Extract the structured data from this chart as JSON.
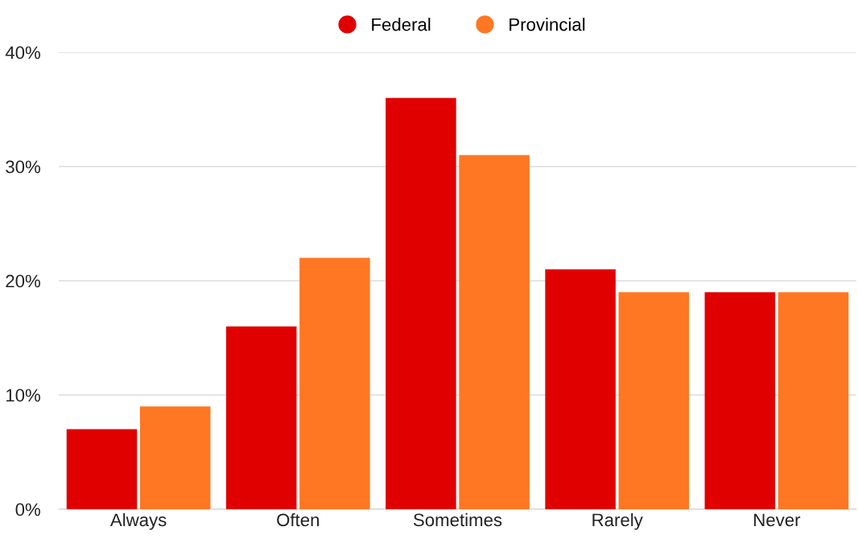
{
  "chart_data": {
    "type": "bar",
    "categories": [
      "Always",
      "Often",
      "Sometimes",
      "Rarely",
      "Never"
    ],
    "series": [
      {
        "name": "Federal",
        "color": "#e00000",
        "values": [
          7,
          16,
          36,
          21,
          19
        ]
      },
      {
        "name": "Provincial",
        "color": "#ff7722",
        "values": [
          9,
          22,
          31,
          19,
          19
        ]
      }
    ],
    "ylim": [
      0,
      40
    ],
    "yticks": [
      {
        "value": 0,
        "label": "0%"
      },
      {
        "value": 10,
        "label": "10%"
      },
      {
        "value": 20,
        "label": "20%"
      },
      {
        "value": 30,
        "label": "30%"
      },
      {
        "value": 40,
        "label": "40%"
      }
    ],
    "grid": "y",
    "legend": "top"
  }
}
